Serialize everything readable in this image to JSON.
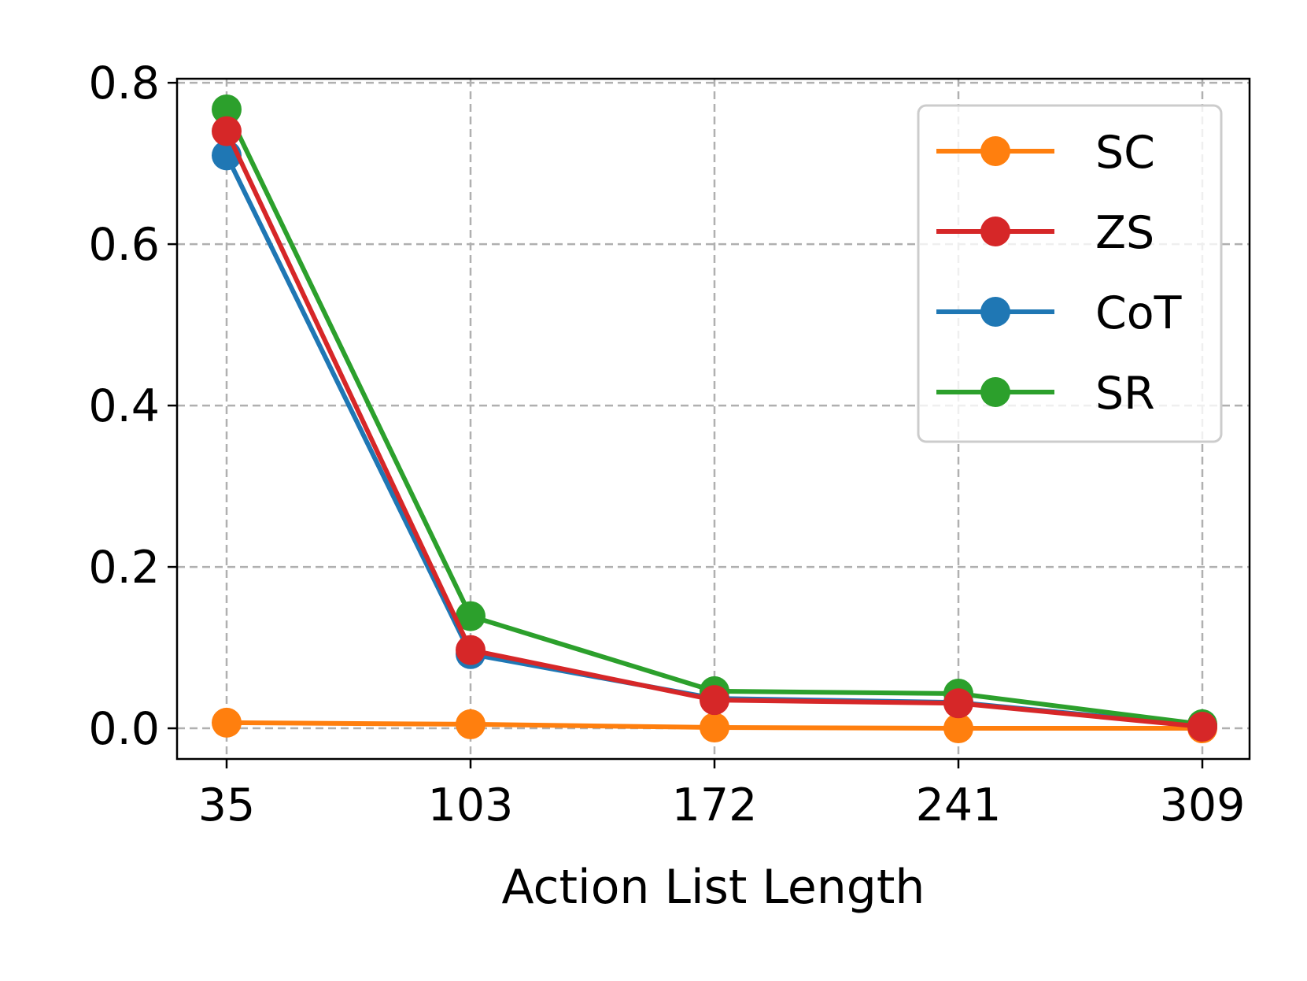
{
  "chart_data": {
    "type": "line",
    "title": "",
    "xlabel": "Action List Length",
    "ylabel": "",
    "x": [
      35,
      103,
      172,
      241,
      309
    ],
    "x_tick_labels": [
      "35",
      "103",
      "172",
      "241",
      "309"
    ],
    "y_ticks": [
      0.0,
      0.2,
      0.4,
      0.6,
      0.8
    ],
    "y_tick_labels": [
      "0.0",
      "0.2",
      "0.4",
      "0.6",
      "0.8"
    ],
    "ylim": [
      -0.038,
      0.805
    ],
    "grid": true,
    "legend_position": "top-right",
    "series": [
      {
        "name": "SC",
        "color": "#ff7f0e",
        "values": [
          0.007,
          0.005,
          0.001,
          0.0,
          0.0
        ]
      },
      {
        "name": "ZS",
        "color": "#d62728",
        "values": [
          0.74,
          0.097,
          0.035,
          0.031,
          0.002
        ]
      },
      {
        "name": "CoT",
        "color": "#1f77b4",
        "values": [
          0.71,
          0.092,
          0.037,
          0.032,
          0.003
        ]
      },
      {
        "name": "SR",
        "color": "#2ca02c",
        "values": [
          0.767,
          0.139,
          0.046,
          0.043,
          0.005
        ]
      }
    ]
  }
}
